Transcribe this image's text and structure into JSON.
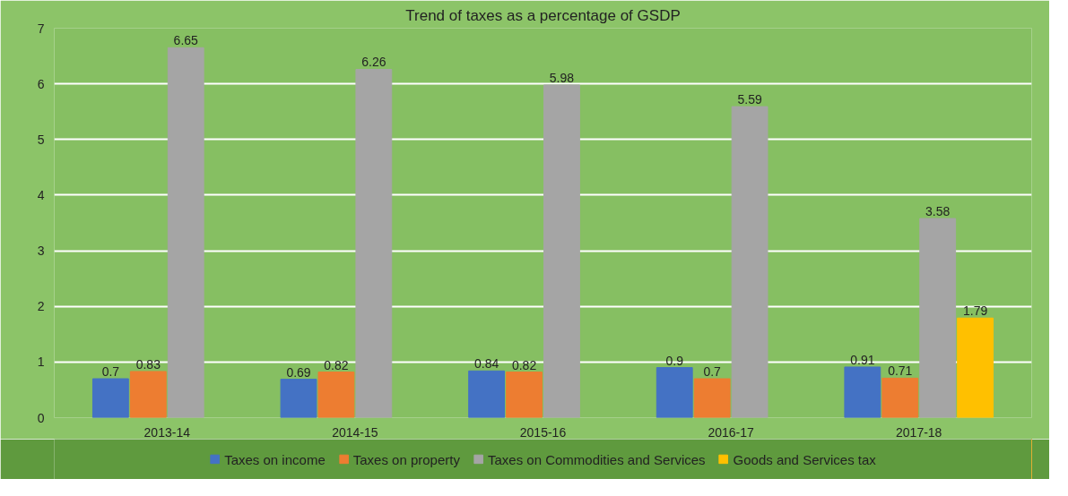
{
  "chart_data": {
    "type": "bar",
    "title": "Trend of taxes as a percentage of GSDP",
    "categories": [
      "2013-14",
      "2014-15",
      "2015-16",
      "2016-17",
      "2017-18"
    ],
    "series": [
      {
        "name": "Taxes on income",
        "color": "#4472c4",
        "values": [
          0.7,
          0.69,
          0.84,
          0.9,
          0.91
        ]
      },
      {
        "name": "Taxes on property",
        "color": "#ed7d31",
        "values": [
          0.83,
          0.82,
          0.82,
          0.7,
          0.71
        ]
      },
      {
        "name": "Taxes on Commodities and Services",
        "color": "#a5a5a5",
        "values": [
          6.65,
          6.26,
          5.98,
          5.59,
          3.58
        ]
      },
      {
        "name": "Goods and Services tax",
        "color": "#ffc000",
        "values": [
          null,
          null,
          null,
          null,
          1.79
        ]
      }
    ],
    "ylim": [
      0,
      7
    ],
    "yticks": [
      0,
      1,
      2,
      3,
      4,
      5,
      6,
      7
    ],
    "grid": "y",
    "legend": "bottom",
    "data_labels": true
  }
}
